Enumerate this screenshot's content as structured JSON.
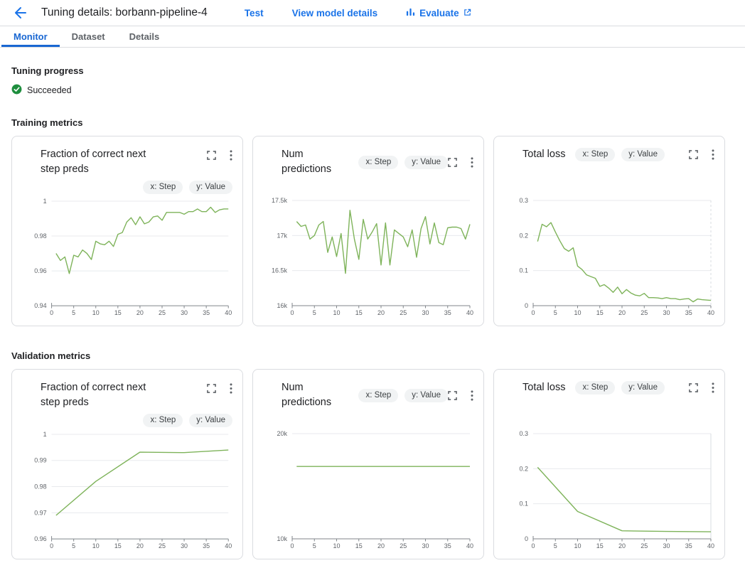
{
  "colors": {
    "accent": "#1a73e8",
    "active_tab": "#1967d2",
    "line": "#7eb35a",
    "grid": "#e8eaed",
    "axis": "#80868b",
    "tick_text": "#5f6368",
    "success": "#1e8e3e",
    "chip_bg": "#f1f3f4"
  },
  "header": {
    "title": "Tuning details: borbann-pipeline-4",
    "actions": {
      "test": "Test",
      "view_model_details": "View model details",
      "evaluate": "Evaluate"
    }
  },
  "tabs": {
    "monitor": "Monitor",
    "dataset": "Dataset",
    "details": "Details"
  },
  "progress": {
    "heading": "Tuning progress",
    "status": "Succeeded"
  },
  "sections": {
    "training_heading": "Training metrics",
    "validation_heading": "Validation metrics"
  },
  "chart_data": [
    {
      "section": "training",
      "type": "line",
      "title": "Fraction of correct next step preds",
      "two_line": true,
      "x_chip": "x: Step",
      "y_chip": "y: Value",
      "xlabel": "Step",
      "ylabel": "Value",
      "xlim": [
        0,
        40
      ],
      "ylim": [
        0.94,
        1
      ],
      "xticks": [
        0,
        5,
        10,
        15,
        20,
        25,
        30,
        35,
        40
      ],
      "yticks": [
        0.94,
        0.96,
        0.98,
        1
      ],
      "ytick_labels": [
        "0.94",
        "0.96",
        "0.98",
        "1"
      ],
      "right_edge": "none",
      "x": [
        1,
        2,
        3,
        4,
        5,
        6,
        7,
        8,
        9,
        10,
        11,
        12,
        13,
        14,
        15,
        16,
        17,
        18,
        19,
        20,
        21,
        22,
        23,
        24,
        25,
        26,
        27,
        28,
        29,
        30,
        31,
        32,
        33,
        34,
        35,
        36,
        37,
        38,
        39,
        40
      ],
      "y": [
        0.97,
        0.966,
        0.968,
        0.9585,
        0.969,
        0.968,
        0.972,
        0.97,
        0.9665,
        0.977,
        0.9755,
        0.975,
        0.977,
        0.974,
        0.981,
        0.982,
        0.988,
        0.9905,
        0.9865,
        0.991,
        0.987,
        0.988,
        0.991,
        0.9915,
        0.989,
        0.9935,
        0.9935,
        0.9935,
        0.9935,
        0.9925,
        0.994,
        0.994,
        0.9955,
        0.994,
        0.994,
        0.9965,
        0.9935,
        0.995,
        0.9955,
        0.9955
      ]
    },
    {
      "section": "training",
      "type": "line",
      "title": "Num predictions",
      "two_line": false,
      "x_chip": "x: Step",
      "y_chip": "y: Value",
      "xlabel": "Step",
      "ylabel": "Value",
      "xlim": [
        0,
        40
      ],
      "ylim": [
        16000,
        17500
      ],
      "xticks": [
        0,
        5,
        10,
        15,
        20,
        25,
        30,
        35,
        40
      ],
      "yticks": [
        16000,
        16500,
        17000,
        17500
      ],
      "ytick_labels": [
        "16k",
        "16.5k",
        "17k",
        "17.5k"
      ],
      "right_edge": "none",
      "x": [
        1,
        2,
        3,
        4,
        5,
        6,
        7,
        8,
        9,
        10,
        11,
        12,
        13,
        14,
        15,
        16,
        17,
        18,
        19,
        20,
        21,
        22,
        23,
        24,
        25,
        26,
        27,
        28,
        29,
        30,
        31,
        32,
        33,
        34,
        35,
        36,
        37,
        38,
        39,
        40
      ],
      "y": [
        17200,
        17130,
        17150,
        16950,
        17000,
        17150,
        17200,
        16760,
        16980,
        16700,
        17030,
        16460,
        17360,
        16950,
        16660,
        17230,
        16950,
        17050,
        17170,
        16580,
        17180,
        16580,
        17080,
        17030,
        16980,
        16840,
        17080,
        16690,
        17100,
        17270,
        16880,
        17180,
        16900,
        16870,
        17110,
        17120,
        17120,
        17100,
        16950,
        17160
      ]
    },
    {
      "section": "training",
      "type": "line",
      "title": "Total loss",
      "two_line": false,
      "x_chip": "x: Step",
      "y_chip": "y: Value",
      "xlabel": "Step",
      "ylabel": "Value",
      "xlim": [
        0,
        40
      ],
      "ylim": [
        0,
        0.3
      ],
      "xticks": [
        0,
        5,
        10,
        15,
        20,
        25,
        30,
        35,
        40
      ],
      "yticks": [
        0,
        0.1,
        0.2,
        0.3
      ],
      "ytick_labels": [
        "0",
        "0.1",
        "0.2",
        "0.3"
      ],
      "right_edge": "dashed",
      "x": [
        1,
        2,
        3,
        4,
        5,
        6,
        7,
        8,
        9,
        10,
        11,
        12,
        13,
        14,
        15,
        16,
        17,
        18,
        19,
        20,
        21,
        22,
        23,
        24,
        25,
        26,
        27,
        28,
        29,
        30,
        31,
        32,
        33,
        34,
        35,
        36,
        37,
        38,
        39,
        40
      ],
      "y": [
        0.183,
        0.232,
        0.225,
        0.237,
        0.21,
        0.185,
        0.163,
        0.155,
        0.165,
        0.113,
        0.103,
        0.088,
        0.083,
        0.078,
        0.055,
        0.06,
        0.05,
        0.038,
        0.053,
        0.034,
        0.046,
        0.036,
        0.03,
        0.028,
        0.035,
        0.023,
        0.023,
        0.022,
        0.02,
        0.023,
        0.02,
        0.02,
        0.017,
        0.019,
        0.02,
        0.011,
        0.019,
        0.017,
        0.016,
        0.015
      ]
    },
    {
      "section": "validation",
      "type": "line",
      "title": "Fraction of correct next step preds",
      "two_line": true,
      "x_chip": "x: Step",
      "y_chip": "y: Value",
      "xlabel": "Step",
      "ylabel": "Value",
      "xlim": [
        0,
        40
      ],
      "ylim": [
        0.96,
        1
      ],
      "xticks": [
        0,
        5,
        10,
        15,
        20,
        25,
        30,
        35,
        40
      ],
      "yticks": [
        0.96,
        0.97,
        0.98,
        0.99,
        1
      ],
      "ytick_labels": [
        "0.96",
        "0.97",
        "0.98",
        "0.99",
        "1"
      ],
      "right_edge": "none",
      "x": [
        1,
        10,
        20,
        30,
        40
      ],
      "y": [
        0.969,
        0.982,
        0.9932,
        0.993,
        0.994
      ]
    },
    {
      "section": "validation",
      "type": "line",
      "title": "Num predictions",
      "two_line": false,
      "x_chip": "x: Step",
      "y_chip": "y: Value",
      "xlabel": "Step",
      "ylabel": "Value",
      "xlim": [
        0,
        40
      ],
      "ylim": [
        10000,
        20000
      ],
      "xticks": [
        0,
        5,
        10,
        15,
        20,
        25,
        30,
        35,
        40
      ],
      "yticks": [
        10000,
        20000
      ],
      "ytick_labels": [
        "10k",
        "20k"
      ],
      "right_edge": "none",
      "x": [
        1,
        10,
        20,
        30,
        40
      ],
      "y": [
        16880,
        16880,
        16880,
        16880,
        16880
      ]
    },
    {
      "section": "validation",
      "type": "line",
      "title": "Total loss",
      "two_line": false,
      "x_chip": "x: Step",
      "y_chip": "y: Value",
      "xlabel": "Step",
      "ylabel": "Value",
      "xlim": [
        0,
        40
      ],
      "ylim": [
        0,
        0.3
      ],
      "xticks": [
        0,
        5,
        10,
        15,
        20,
        25,
        30,
        35,
        40
      ],
      "yticks": [
        0,
        0.1,
        0.2,
        0.3
      ],
      "ytick_labels": [
        "0",
        "0.1",
        "0.2",
        "0.3"
      ],
      "right_edge": "solid",
      "x": [
        1,
        10,
        20,
        30,
        40
      ],
      "y": [
        0.204,
        0.078,
        0.023,
        0.021,
        0.02
      ]
    }
  ]
}
